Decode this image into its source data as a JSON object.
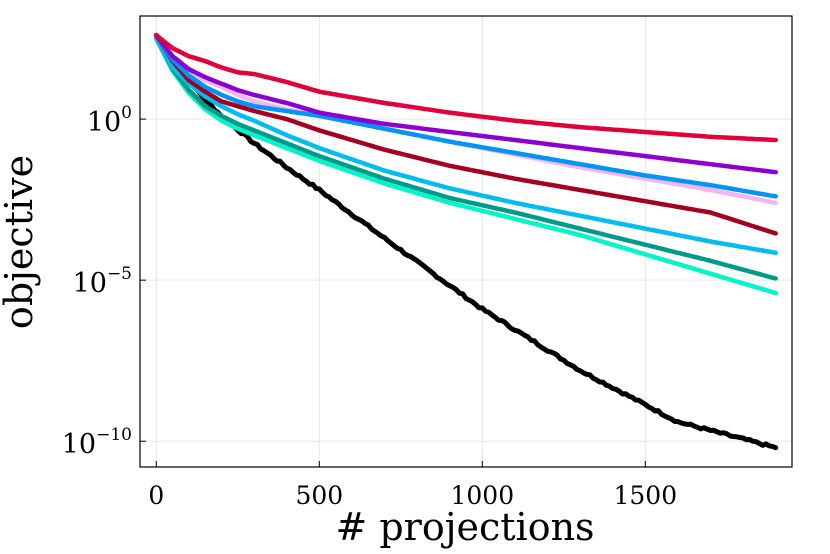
{
  "chart_data": {
    "type": "line",
    "title": "",
    "xlabel": "# projections",
    "ylabel": "objective",
    "xlim": [
      -50,
      1950
    ],
    "ylim_log10": [
      -10.8,
      3.2
    ],
    "yscale": "log",
    "grid": true,
    "legend": "none",
    "xticks": [
      {
        "value": 0,
        "label": "0"
      },
      {
        "value": 500,
        "label": "500"
      },
      {
        "value": 1000,
        "label": "1000"
      },
      {
        "value": 1500,
        "label": "1500"
      }
    ],
    "yticks": [
      {
        "value": 0,
        "base": "10",
        "exp": "0"
      },
      {
        "value": -5,
        "base": "10",
        "exp": "−5"
      },
      {
        "value": -10,
        "base": "10",
        "exp": "−10"
      }
    ],
    "series": [
      {
        "name": "series-black",
        "color": "#000000",
        "noisy": true,
        "x": [
          0,
          50,
          100,
          150,
          200,
          300,
          400,
          500,
          700,
          1000,
          1300,
          1600,
          1900
        ],
        "log10_y": [
          2.6,
          1.85,
          1.2,
          0.6,
          0.1,
          -0.75,
          -1.5,
          -2.2,
          -3.7,
          -5.9,
          -7.8,
          -9.4,
          -10.2
        ]
      },
      {
        "name": "series-teal-light",
        "color": "#00f5c8",
        "x": [
          0,
          50,
          100,
          150,
          200,
          250,
          300,
          400,
          500,
          700,
          900,
          1100,
          1300,
          1500,
          1700,
          1900
        ],
        "log10_y": [
          2.5,
          1.5,
          0.8,
          0.3,
          -0.05,
          -0.3,
          -0.5,
          -0.9,
          -1.3,
          -2.0,
          -2.6,
          -3.1,
          -3.6,
          -4.2,
          -4.8,
          -5.4
        ]
      },
      {
        "name": "series-teal-dark",
        "color": "#00998a",
        "x": [
          0,
          50,
          100,
          150,
          200,
          250,
          300,
          400,
          500,
          700,
          900,
          1100,
          1300,
          1500,
          1700,
          1900
        ],
        "log10_y": [
          2.5,
          1.55,
          0.9,
          0.4,
          0.1,
          -0.15,
          -0.35,
          -0.75,
          -1.15,
          -1.85,
          -2.45,
          -2.9,
          -3.4,
          -3.9,
          -4.4,
          -4.95
        ]
      },
      {
        "name": "series-sky-blue",
        "color": "#00bcf0",
        "x": [
          0,
          50,
          100,
          150,
          200,
          250,
          300,
          400,
          500,
          700,
          900,
          1100,
          1300,
          1500,
          1700,
          1900
        ],
        "log10_y": [
          2.5,
          1.6,
          1.1,
          0.7,
          0.4,
          0.15,
          -0.05,
          -0.5,
          -0.9,
          -1.6,
          -2.15,
          -2.6,
          -3.0,
          -3.4,
          -3.8,
          -4.15
        ]
      },
      {
        "name": "series-crimson",
        "color": "#a3001f",
        "x": [
          0,
          50,
          100,
          150,
          200,
          250,
          300,
          400,
          500,
          700,
          900,
          1100,
          1300,
          1500,
          1700,
          1900
        ],
        "log10_y": [
          2.6,
          1.8,
          1.2,
          0.85,
          0.55,
          0.4,
          0.25,
          0.0,
          -0.35,
          -0.95,
          -1.45,
          -1.85,
          -2.2,
          -2.55,
          -2.9,
          -3.55
        ]
      },
      {
        "name": "series-pink",
        "color": "#f3b6f5",
        "x": [
          0,
          50,
          100,
          150,
          200,
          250,
          300,
          400,
          500,
          700,
          900,
          1100,
          1300,
          1500,
          1700,
          1900
        ],
        "log10_y": [
          2.6,
          1.9,
          1.5,
          1.2,
          1.0,
          0.75,
          0.55,
          0.3,
          0.1,
          -0.3,
          -0.7,
          -1.1,
          -1.5,
          -1.85,
          -2.2,
          -2.6
        ]
      },
      {
        "name": "series-blue",
        "color": "#0094f5",
        "x": [
          0,
          50,
          100,
          150,
          200,
          250,
          300,
          400,
          500,
          700,
          900,
          1100,
          1300,
          1500,
          1700,
          1900
        ],
        "log10_y": [
          2.6,
          1.85,
          1.35,
          1.0,
          0.75,
          0.55,
          0.4,
          0.25,
          0.1,
          -0.3,
          -0.7,
          -1.05,
          -1.4,
          -1.75,
          -2.05,
          -2.4
        ]
      },
      {
        "name": "series-purple",
        "color": "#8b00cf",
        "x": [
          0,
          50,
          100,
          150,
          200,
          250,
          300,
          400,
          500,
          700,
          900,
          1100,
          1300,
          1500,
          1700,
          1900
        ],
        "log10_y": [
          2.6,
          1.95,
          1.55,
          1.3,
          1.1,
          0.9,
          0.75,
          0.5,
          0.2,
          -0.15,
          -0.4,
          -0.65,
          -0.9,
          -1.15,
          -1.4,
          -1.65
        ]
      },
      {
        "name": "series-red",
        "color": "#e0003a",
        "x": [
          0,
          50,
          100,
          150,
          200,
          250,
          300,
          400,
          500,
          700,
          900,
          1100,
          1300,
          1500,
          1700,
          1900
        ],
        "log10_y": [
          2.6,
          2.2,
          1.95,
          1.8,
          1.6,
          1.45,
          1.4,
          1.15,
          0.85,
          0.5,
          0.2,
          -0.05,
          -0.25,
          -0.4,
          -0.55,
          -0.65
        ]
      }
    ]
  }
}
